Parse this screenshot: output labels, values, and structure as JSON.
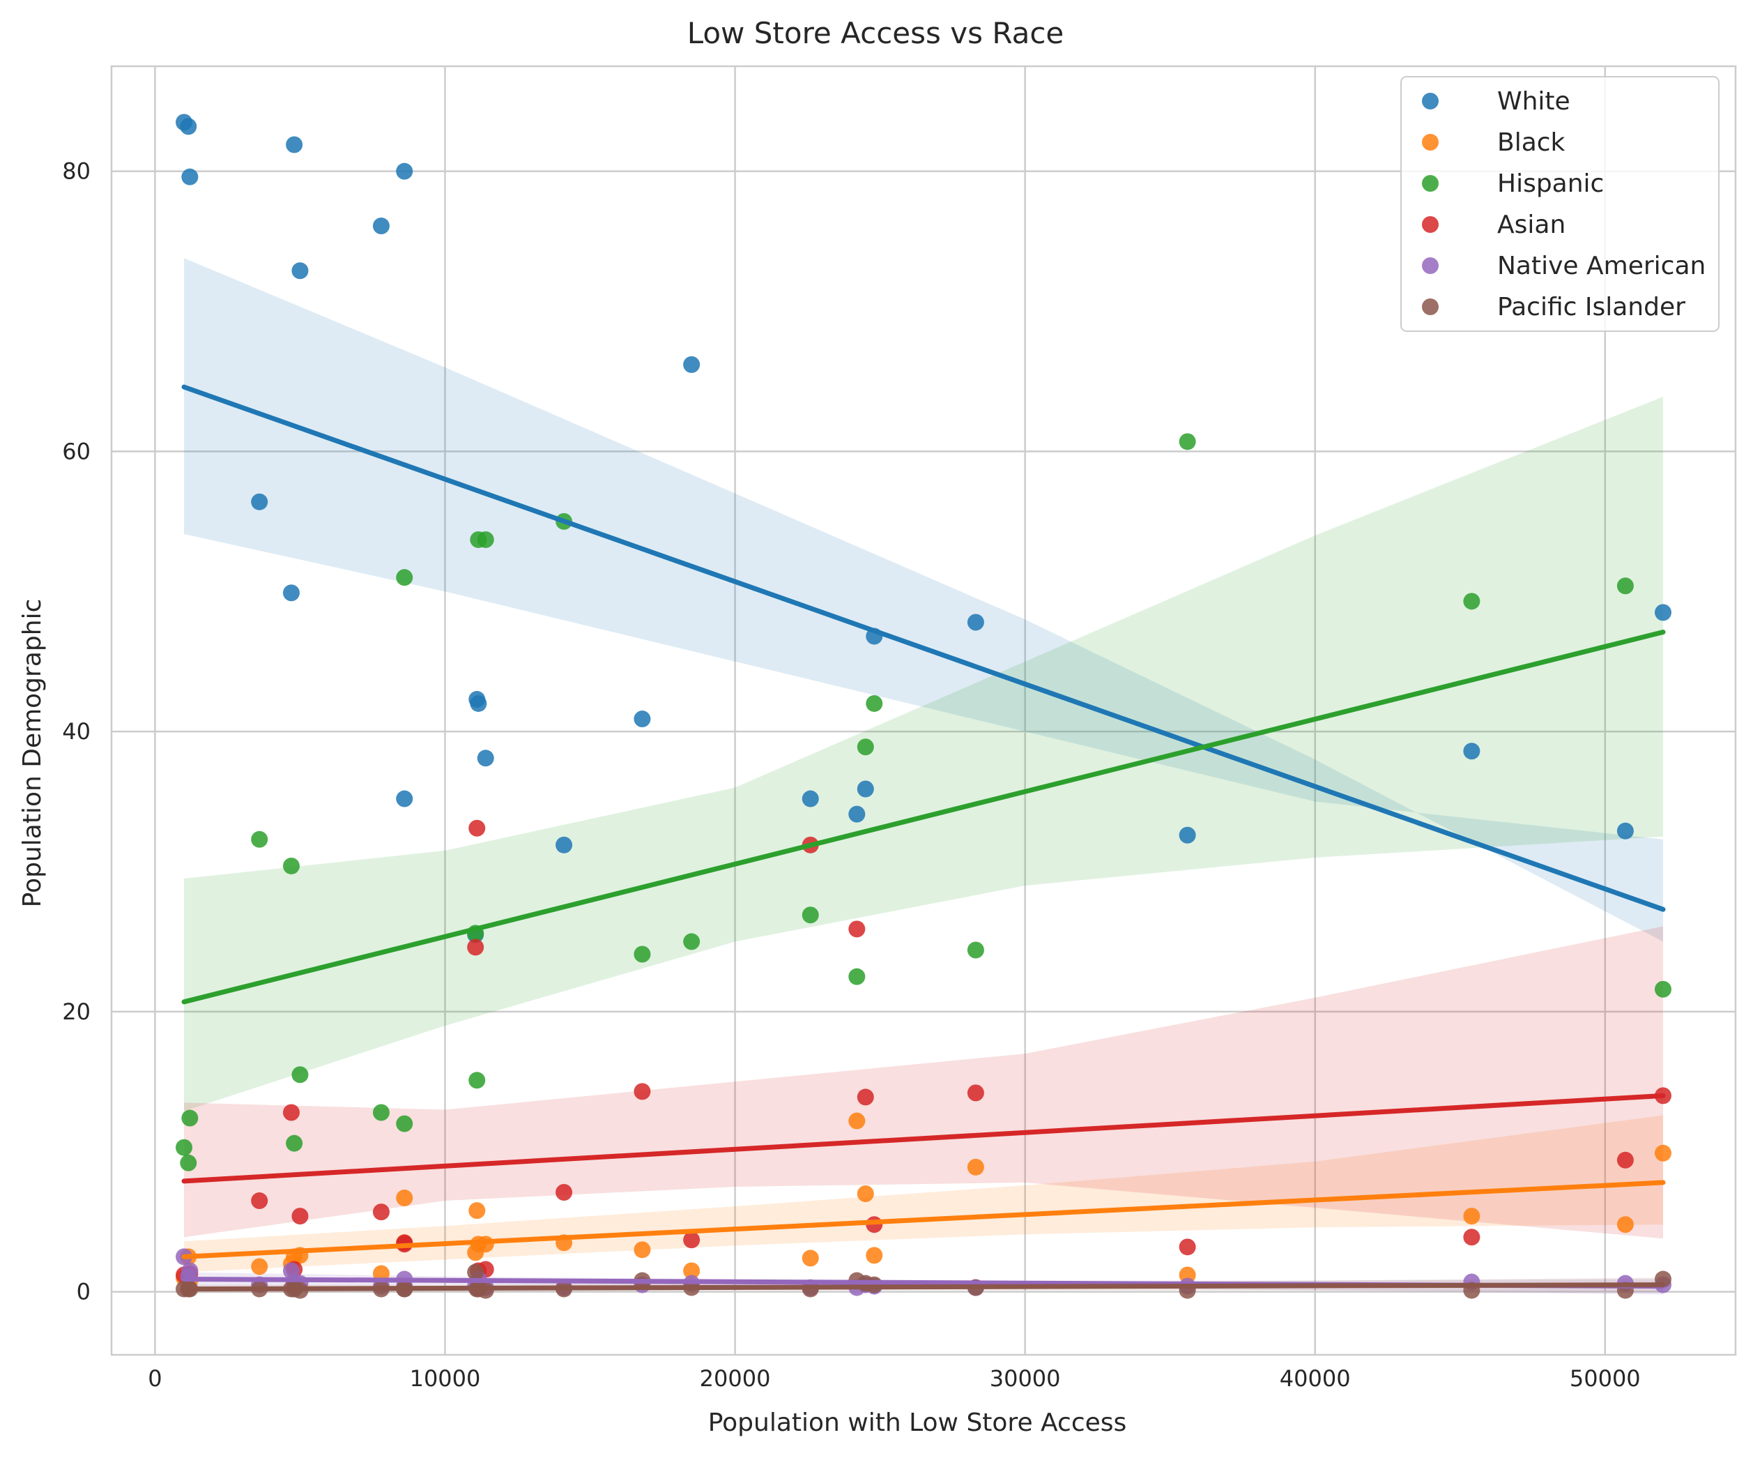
{
  "chart_data": {
    "type": "scatter",
    "title": "Low Store Access vs Race",
    "xlabel": "Population with Low Store Access",
    "ylabel": "Population Demographic",
    "xlim": [
      -1500,
      54500
    ],
    "ylim": [
      -4.5,
      87.5
    ],
    "xticks": [
      0,
      10000,
      20000,
      30000,
      40000,
      50000
    ],
    "yticks": [
      0,
      20,
      40,
      60,
      80
    ],
    "grid": true,
    "legend_position": "top-right",
    "x": [
      1000,
      1150,
      1200,
      3600,
      4700,
      4800,
      5000,
      7800,
      8600,
      8600,
      11050,
      11100,
      11150,
      11400,
      14100,
      16800,
      18500,
      22600,
      24200,
      24500,
      24800,
      28300,
      35600,
      45400,
      50700,
      52000
    ],
    "series": [
      {
        "name": "White",
        "color": "#1f77b4",
        "values": [
          83.5,
          83.2,
          79.6,
          56.4,
          49.9,
          81.9,
          72.9,
          76.1,
          80.0,
          35.2,
          25.5,
          42.3,
          42.0,
          38.1,
          31.9,
          40.9,
          66.2,
          35.2,
          34.1,
          35.9,
          46.8,
          47.8,
          32.6,
          38.6,
          32.9,
          48.5
        ],
        "fit": [
          [
            1000,
            64.6
          ],
          [
            52000,
            27.3
          ]
        ],
        "ci": [
          [
            [
              1000,
              73.8
            ],
            [
              10000,
              66.0
            ],
            [
              20000,
              57.0
            ],
            [
              30000,
              48.0
            ],
            [
              40000,
              38.0
            ],
            [
              52000,
              25.0
            ]
          ],
          [
            [
              1000,
              54.1
            ],
            [
              10000,
              50.0
            ],
            [
              20000,
              45.0
            ],
            [
              30000,
              40.0
            ],
            [
              40000,
              35.0
            ],
            [
              52000,
              32.3
            ]
          ]
        ]
      },
      {
        "name": "Black",
        "color": "#ff7f0e",
        "values": [
          1.0,
          2.5,
          0.8,
          1.8,
          2.0,
          2.5,
          2.6,
          1.3,
          6.7,
          3.5,
          2.8,
          5.8,
          3.4,
          3.4,
          3.5,
          3.0,
          1.5,
          2.4,
          12.2,
          7.0,
          2.6,
          8.9,
          1.2,
          5.4,
          4.8,
          9.9
        ],
        "fit": [
          [
            1000,
            2.5
          ],
          [
            52000,
            7.8
          ]
        ],
        "ci": [
          [
            [
              1000,
              3.6
            ],
            [
              10000,
              4.7
            ],
            [
              20000,
              6.1
            ],
            [
              30000,
              7.6
            ],
            [
              40000,
              9.3
            ],
            [
              52000,
              12.6
            ]
          ],
          [
            [
              1000,
              1.4
            ],
            [
              10000,
              2.3
            ],
            [
              20000,
              3.3
            ],
            [
              30000,
              4.1
            ],
            [
              40000,
              4.6
            ],
            [
              52000,
              4.8
            ]
          ]
        ]
      },
      {
        "name": "Hispanic",
        "color": "#2ca02c",
        "values": [
          10.3,
          9.2,
          12.4,
          32.3,
          30.4,
          10.6,
          15.5,
          12.8,
          51.0,
          12.0,
          25.6,
          15.1,
          53.7,
          53.7,
          55.0,
          24.1,
          25.0,
          26.9,
          22.5,
          38.9,
          42.0,
          24.4,
          60.7,
          49.3,
          50.4,
          21.6
        ],
        "fit": [
          [
            1000,
            20.7
          ],
          [
            52000,
            47.1
          ]
        ],
        "ci": [
          [
            [
              1000,
              29.5
            ],
            [
              10000,
              31.5
            ],
            [
              20000,
              36.0
            ],
            [
              30000,
              45.0
            ],
            [
              40000,
              54.0
            ],
            [
              52000,
              63.9
            ]
          ],
          [
            [
              1000,
              12.9
            ],
            [
              10000,
              19.0
            ],
            [
              20000,
              25.0
            ],
            [
              30000,
              29.0
            ],
            [
              40000,
              31.0
            ],
            [
              52000,
              32.5
            ]
          ]
        ]
      },
      {
        "name": "Asian",
        "color": "#d62728",
        "values": [
          1.2,
          1.2,
          1.3,
          6.5,
          12.8,
          1.6,
          5.4,
          5.7,
          3.5,
          3.4,
          24.6,
          33.1,
          1.5,
          1.6,
          7.1,
          14.3,
          3.7,
          31.9,
          25.9,
          13.9,
          4.8,
          14.2,
          3.2,
          3.9,
          9.4,
          14.0
        ],
        "fit": [
          [
            1000,
            7.9
          ],
          [
            52000,
            14.0
          ]
        ],
        "ci": [
          [
            [
              1000,
              13.5
            ],
            [
              10000,
              13.0
            ],
            [
              20000,
              15.0
            ],
            [
              30000,
              17.0
            ],
            [
              40000,
              21.0
            ],
            [
              52000,
              26.1
            ]
          ],
          [
            [
              1000,
              3.9
            ],
            [
              10000,
              6.5
            ],
            [
              20000,
              7.5
            ],
            [
              30000,
              7.8
            ],
            [
              40000,
              6.0
            ],
            [
              52000,
              3.8
            ]
          ]
        ]
      },
      {
        "name": "Native American",
        "color": "#9467bd",
        "values": [
          2.5,
          1.1,
          1.5,
          0.5,
          1.5,
          0.7,
          0.6,
          0.4,
          0.9,
          0.4,
          0.4,
          0.3,
          0.9,
          0.3,
          0.3,
          0.5,
          0.6,
          0.3,
          0.3,
          0.5,
          0.4,
          0.3,
          0.4,
          0.7,
          0.6,
          0.5
        ],
        "fit": [
          [
            1000,
            0.9
          ],
          [
            52000,
            0.4
          ]
        ],
        "ci": [
          [
            [
              1000,
              1.4
            ],
            [
              10000,
              1.1
            ],
            [
              20000,
              0.9
            ],
            [
              30000,
              0.8
            ],
            [
              40000,
              0.8
            ],
            [
              52000,
              0.9
            ]
          ],
          [
            [
              1000,
              0.4
            ],
            [
              10000,
              0.5
            ],
            [
              20000,
              0.4
            ],
            [
              30000,
              0.3
            ],
            [
              40000,
              0.1
            ],
            [
              52000,
              -0.2
            ]
          ]
        ]
      },
      {
        "name": "Pacific Islander",
        "color": "#8c564b",
        "values": [
          0.2,
          0.2,
          0.2,
          0.2,
          0.2,
          0.2,
          0.1,
          0.2,
          0.2,
          0.2,
          1.4,
          0.2,
          0.2,
          0.1,
          0.2,
          0.8,
          0.3,
          0.2,
          0.8,
          0.6,
          0.5,
          0.3,
          0.1,
          0.1,
          0.1,
          0.9
        ],
        "fit": [
          [
            1000,
            0.2
          ],
          [
            52000,
            0.5
          ]
        ],
        "ci": [
          [
            [
              1000,
              0.5
            ],
            [
              10000,
              0.5
            ],
            [
              20000,
              0.6
            ],
            [
              30000,
              0.7
            ],
            [
              40000,
              0.8
            ],
            [
              52000,
              1.0
            ]
          ],
          [
            [
              1000,
              -0.1
            ],
            [
              10000,
              0.0
            ],
            [
              20000,
              0.1
            ],
            [
              30000,
              0.1
            ],
            [
              40000,
              0.1
            ],
            [
              52000,
              0.0
            ]
          ]
        ]
      }
    ]
  }
}
